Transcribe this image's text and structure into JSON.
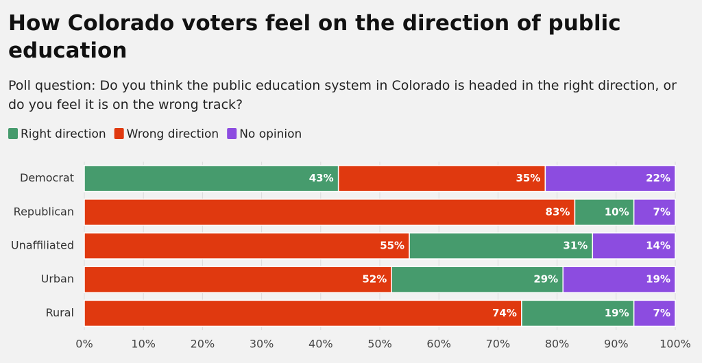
{
  "chart_data": {
    "type": "stacked_bar_horizontal",
    "title": "How Colorado voters feel on the direction of public education",
    "subtitle": "Poll question: Do you think the public education system in Colorado is headed in the right direction, or do you feel it is on the wrong track?",
    "categories": [
      "Democrat",
      "Republican",
      "Unaffiliated",
      "Urban",
      "Rural"
    ],
    "series": [
      {
        "name": "Right direction",
        "color": "#469b6d",
        "values": [
          43,
          10,
          31,
          29,
          19
        ],
        "value_labels": [
          "43%",
          "10%",
          "31%",
          "29%",
          "19%"
        ]
      },
      {
        "name": "Wrong direction",
        "color": "#e0390f",
        "values": [
          35,
          83,
          55,
          52,
          74
        ],
        "value_labels": [
          "35%",
          "83%",
          "55%",
          "52%",
          "74%"
        ]
      },
      {
        "name": "No opinion",
        "color": "#8c4ce0",
        "values": [
          22,
          7,
          14,
          19,
          7
        ],
        "value_labels": [
          "22%",
          "7%",
          "14%",
          "19%",
          "7%"
        ]
      }
    ],
    "stack_order": [
      [
        0,
        1,
        2
      ],
      [
        1,
        0,
        2
      ],
      [
        1,
        0,
        2
      ],
      [
        1,
        0,
        2
      ],
      [
        1,
        0,
        2
      ]
    ],
    "xlim": [
      0,
      100
    ],
    "xticks": [
      {
        "value": 0,
        "label": "0%"
      },
      {
        "value": 10,
        "label": "10%"
      },
      {
        "value": 20,
        "label": "20%"
      },
      {
        "value": 30,
        "label": "30%"
      },
      {
        "value": 40,
        "label": "40%"
      },
      {
        "value": 50,
        "label": "50%"
      },
      {
        "value": 60,
        "label": "60%"
      },
      {
        "value": 70,
        "label": "70%"
      },
      {
        "value": 80,
        "label": "80%"
      },
      {
        "value": 90,
        "label": "90%"
      },
      {
        "value": 100,
        "label": "100%"
      }
    ],
    "grid": true
  }
}
